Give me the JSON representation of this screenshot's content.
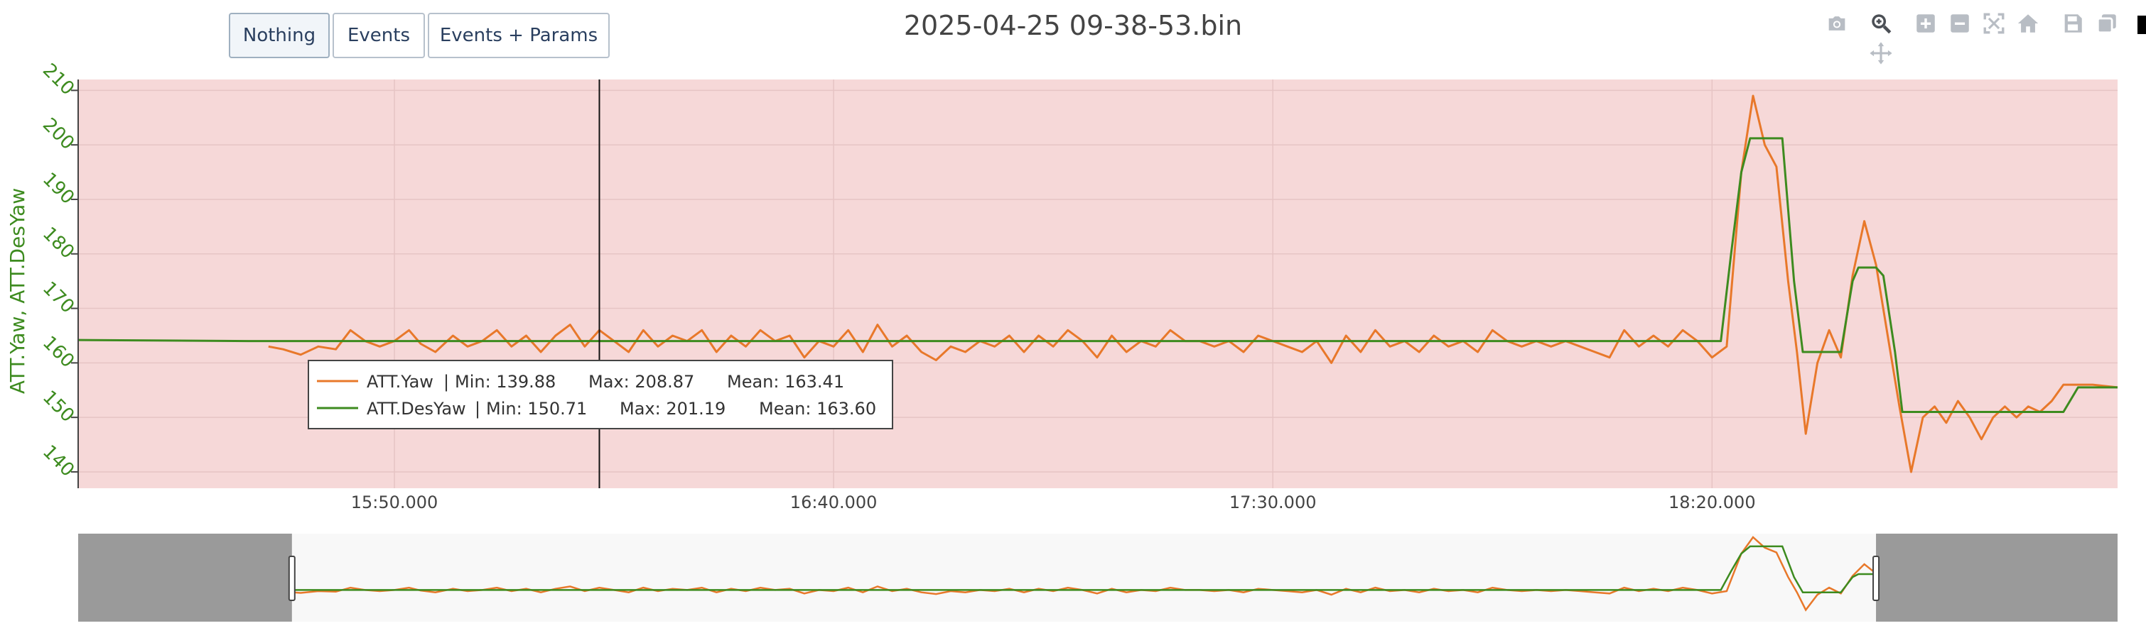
{
  "buttons": [
    {
      "label": "Nothing",
      "active": true
    },
    {
      "label": "Events",
      "active": false
    },
    {
      "label": "Events + Params",
      "active": false
    }
  ],
  "title": "2025-04-25 09-38-53.bin",
  "modebar": [
    "camera-icon",
    "zoom-icon",
    "pan-icon",
    "zoom-in-icon",
    "zoom-out-icon",
    "autoscale-icon",
    "reset-home-icon",
    "save-icon",
    "copy-icon"
  ],
  "chart_data": {
    "type": "line",
    "ylabel": "ATT.Yaw, ATT.DesYaw",
    "ylim": [
      137,
      212
    ],
    "yticks": [
      140,
      150,
      160,
      170,
      180,
      190,
      200,
      210
    ],
    "xlim_seconds": [
      54840,
      68770
    ],
    "xticks": [
      {
        "label": "15:50.000",
        "t": 57000
      },
      {
        "label": "16:40.000",
        "t": 60000
      },
      {
        "label": "17:30.000",
        "t": 63000
      },
      {
        "label": "18:20.000",
        "t": 66000
      }
    ],
    "range_window": [
      56300,
      67120
    ],
    "cursor_t": 58400,
    "grid": true,
    "background_color": "#f6d8d8",
    "series": [
      {
        "name": "ATT.Yaw",
        "color": "#e8782a",
        "points": [
          [
            56140,
            163
          ],
          [
            56240,
            162.5
          ],
          [
            56360,
            161.5
          ],
          [
            56480,
            163
          ],
          [
            56600,
            162.5
          ],
          [
            56700,
            166
          ],
          [
            56800,
            164
          ],
          [
            56900,
            163
          ],
          [
            57000,
            164
          ],
          [
            57100,
            166
          ],
          [
            57180,
            163.5
          ],
          [
            57280,
            162
          ],
          [
            57400,
            165
          ],
          [
            57500,
            163
          ],
          [
            57600,
            164
          ],
          [
            57700,
            166
          ],
          [
            57800,
            163
          ],
          [
            57900,
            165
          ],
          [
            58000,
            162
          ],
          [
            58100,
            165
          ],
          [
            58200,
            167
          ],
          [
            58300,
            163
          ],
          [
            58400,
            166
          ],
          [
            58500,
            164
          ],
          [
            58600,
            162
          ],
          [
            58700,
            166
          ],
          [
            58800,
            163
          ],
          [
            58900,
            165
          ],
          [
            59000,
            164
          ],
          [
            59100,
            166
          ],
          [
            59200,
            162
          ],
          [
            59300,
            165
          ],
          [
            59400,
            163
          ],
          [
            59500,
            166
          ],
          [
            59600,
            164
          ],
          [
            59700,
            165
          ],
          [
            59800,
            161
          ],
          [
            59900,
            164
          ],
          [
            60000,
            163
          ],
          [
            60100,
            166
          ],
          [
            60200,
            162
          ],
          [
            60300,
            167
          ],
          [
            60400,
            163
          ],
          [
            60500,
            165
          ],
          [
            60600,
            162
          ],
          [
            60700,
            160.5
          ],
          [
            60800,
            163
          ],
          [
            60900,
            162
          ],
          [
            61000,
            164
          ],
          [
            61100,
            163
          ],
          [
            61200,
            165
          ],
          [
            61300,
            162
          ],
          [
            61400,
            165
          ],
          [
            61500,
            163
          ],
          [
            61600,
            166
          ],
          [
            61700,
            164
          ],
          [
            61800,
            161
          ],
          [
            61900,
            165
          ],
          [
            62000,
            162
          ],
          [
            62100,
            164
          ],
          [
            62200,
            163
          ],
          [
            62300,
            166
          ],
          [
            62400,
            164
          ],
          [
            62500,
            164
          ],
          [
            62600,
            163
          ],
          [
            62700,
            164
          ],
          [
            62800,
            162
          ],
          [
            62900,
            165
          ],
          [
            63000,
            164
          ],
          [
            63100,
            163
          ],
          [
            63200,
            162
          ],
          [
            63300,
            164
          ],
          [
            63400,
            160
          ],
          [
            63500,
            165
          ],
          [
            63600,
            162
          ],
          [
            63700,
            166
          ],
          [
            63800,
            163
          ],
          [
            63900,
            164
          ],
          [
            64000,
            162
          ],
          [
            64100,
            165
          ],
          [
            64200,
            163
          ],
          [
            64300,
            164
          ],
          [
            64400,
            162
          ],
          [
            64500,
            166
          ],
          [
            64600,
            164
          ],
          [
            64700,
            163
          ],
          [
            64800,
            164
          ],
          [
            64900,
            163
          ],
          [
            65000,
            164
          ],
          [
            65100,
            163
          ],
          [
            65200,
            162
          ],
          [
            65300,
            161
          ],
          [
            65400,
            166
          ],
          [
            65500,
            163
          ],
          [
            65600,
            165
          ],
          [
            65700,
            163
          ],
          [
            65800,
            166
          ],
          [
            65900,
            164
          ],
          [
            66000,
            161
          ],
          [
            66100,
            163
          ],
          [
            66200,
            195
          ],
          [
            66280,
            209
          ],
          [
            66360,
            200
          ],
          [
            66440,
            196
          ],
          [
            66520,
            175
          ],
          [
            66580,
            162
          ],
          [
            66640,
            147
          ],
          [
            66720,
            160
          ],
          [
            66800,
            166
          ],
          [
            66880,
            161
          ],
          [
            66960,
            176
          ],
          [
            67040,
            186
          ],
          [
            67120,
            178
          ],
          [
            67200,
            165
          ],
          [
            67280,
            152
          ],
          [
            67360,
            140
          ],
          [
            67440,
            150
          ],
          [
            67520,
            152
          ],
          [
            67600,
            149
          ],
          [
            67680,
            153
          ],
          [
            67760,
            150
          ],
          [
            67840,
            146
          ],
          [
            67920,
            150
          ],
          [
            68000,
            152
          ],
          [
            68080,
            150
          ],
          [
            68160,
            152
          ],
          [
            68240,
            151
          ],
          [
            68320,
            153
          ],
          [
            68400,
            156
          ],
          [
            68500,
            156
          ],
          [
            68600,
            156
          ],
          [
            68770,
            155.5
          ]
        ]
      },
      {
        "name": "ATT.DesYaw",
        "color": "#3d8b1f",
        "points": [
          [
            54840,
            164.2
          ],
          [
            56000,
            164
          ],
          [
            57000,
            164
          ],
          [
            58000,
            164
          ],
          [
            59000,
            164
          ],
          [
            60000,
            164
          ],
          [
            61000,
            164
          ],
          [
            62000,
            164
          ],
          [
            63000,
            164
          ],
          [
            64000,
            164
          ],
          [
            65000,
            164
          ],
          [
            66000,
            164
          ],
          [
            66060,
            164
          ],
          [
            66130,
            180
          ],
          [
            66200,
            195
          ],
          [
            66260,
            201.2
          ],
          [
            66420,
            201.2
          ],
          [
            66480,
            201.2
          ],
          [
            66560,
            175
          ],
          [
            66620,
            162
          ],
          [
            66880,
            162
          ],
          [
            66960,
            175
          ],
          [
            67000,
            177.5
          ],
          [
            67120,
            177.5
          ],
          [
            67170,
            176
          ],
          [
            67250,
            162
          ],
          [
            67300,
            151
          ],
          [
            67600,
            151
          ],
          [
            68000,
            151
          ],
          [
            68040,
            151
          ],
          [
            68400,
            151
          ],
          [
            68500,
            155.5
          ],
          [
            68600,
            155.5
          ],
          [
            68770,
            155.5
          ]
        ]
      }
    ],
    "legend": [
      {
        "name": "ATT.Yaw",
        "min": "Min: 139.88",
        "max": "Max: 208.87",
        "mean": "Mean: 163.41"
      },
      {
        "name": "ATT.DesYaw",
        "min": "Min: 150.71",
        "max": "Max: 201.19",
        "mean": "Mean: 163.60"
      }
    ]
  }
}
